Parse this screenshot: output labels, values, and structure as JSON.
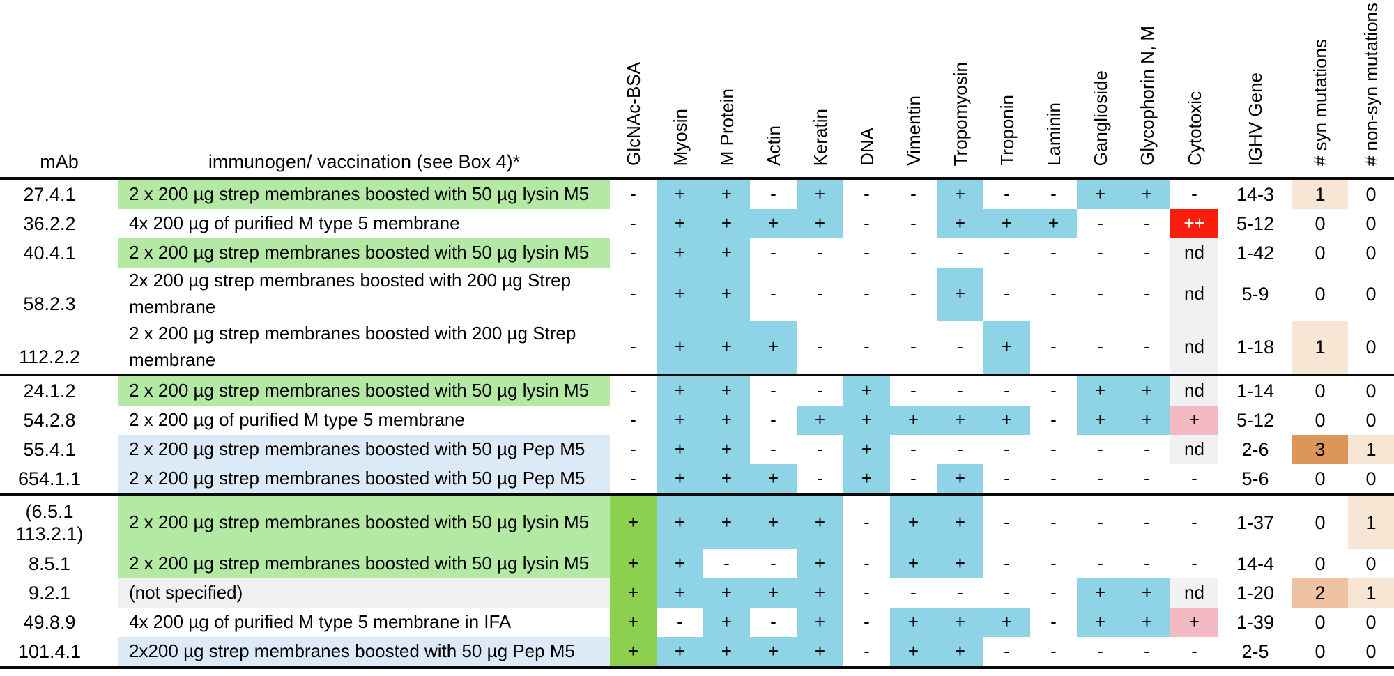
{
  "table": {
    "header": {
      "mab": "mAb",
      "immunogen": "immunogen/ vaccination (see Box 4)*",
      "antigens": [
        "GlcNAc-BSA",
        "Myosin",
        "M Protein",
        "Actin",
        "Keratin",
        "DNA",
        "Vimentin",
        "Tropomyosin",
        "Troponin",
        "Laminin",
        "Ganglioside",
        "Glycophorin N, M",
        "Cytotoxic"
      ],
      "meta": [
        "IGHV Gene",
        "# syn mutations",
        "# non-syn mutations"
      ]
    },
    "colors": {
      "positive": "#8FD3E6",
      "glcnac_positive": "#8DD04F",
      "row_green": "#B4E9A4",
      "row_blue": "#DCE9F6",
      "row_gray": "#F0F0F0",
      "cytotoxic_strong": "#FA1E0E",
      "cytotoxic_weak": "#F4BAC4",
      "not_determined": "#F1F1F1",
      "mutation_1": "#F8E6D4",
      "mutation_2": "#EFC3A2",
      "mutation_3": "#DD9659"
    },
    "groups": [
      {
        "rows": [
          {
            "mab": [
              "27.4.1"
            ],
            "immunogen": "2 x 200 µg strep membranes boosted with 50 µg lysin M5",
            "imm_bg": "green",
            "tall": false,
            "cells": [
              "-",
              "+",
              "+",
              "-",
              "+",
              "-",
              "-",
              "+",
              "-",
              "-",
              "+",
              "+",
              "-"
            ],
            "ighv": "14-3",
            "syn": "1",
            "nonsyn": "0"
          },
          {
            "mab": [
              "36.2.2"
            ],
            "immunogen": "4x 200 µg of purified M type 5 membrane",
            "imm_bg": "white",
            "tall": false,
            "cells": [
              "-",
              "+",
              "+",
              "+",
              "+",
              "-",
              "-",
              "+",
              "+",
              "+",
              "-",
              "-",
              "++"
            ],
            "ighv": "5-12",
            "syn": "0",
            "nonsyn": "0"
          },
          {
            "mab": [
              "40.4.1"
            ],
            "immunogen": "2 x 200 µg strep membranes boosted with 50 µg lysin M5",
            "imm_bg": "green",
            "tall": false,
            "cells": [
              "-",
              "+",
              "+",
              "-",
              "-",
              "-",
              "-",
              "-",
              "-",
              "-",
              "-",
              "-",
              "nd"
            ],
            "ighv": "1-42",
            "syn": "0",
            "nonsyn": "0"
          },
          {
            "mab": [
              "",
              "58.2.3"
            ],
            "immunogen": "2x 200 µg strep membranes boosted with 200 µg Strep\nmembrane",
            "imm_bg": "white",
            "tall": true,
            "cells": [
              "-",
              "+",
              "+",
              "-",
              "-",
              "-",
              "-",
              "+",
              "-",
              "-",
              "-",
              "-",
              "nd"
            ],
            "ighv": "5-9",
            "syn": "0",
            "nonsyn": "0"
          },
          {
            "mab": [
              "",
              "112.2.2"
            ],
            "immunogen": "2 x 200 µg strep membranes boosted with 200 µg Strep\nmembrane",
            "imm_bg": "white",
            "tall": true,
            "cells": [
              "-",
              "+",
              "+",
              "+",
              "-",
              "-",
              "-",
              "-",
              "+",
              "-",
              "-",
              "-",
              "nd"
            ],
            "ighv": "1-18",
            "syn": "1",
            "nonsyn": "0"
          }
        ]
      },
      {
        "rows": [
          {
            "mab": [
              "24.1.2"
            ],
            "immunogen": "2 x 200 µg strep membranes boosted with 50 µg lysin M5",
            "imm_bg": "green",
            "tall": false,
            "cells": [
              "-",
              "+",
              "+",
              "-",
              "-",
              "+",
              "-",
              "-",
              "-",
              "-",
              "+",
              "+",
              "nd"
            ],
            "ighv": "1-14",
            "syn": "0",
            "nonsyn": "0"
          },
          {
            "mab": [
              "54.2.8"
            ],
            "immunogen": "2 x 200 µg of purified M type 5 membrane",
            "imm_bg": "white",
            "tall": false,
            "cells": [
              "-",
              "+",
              "+",
              "-",
              "+",
              "+",
              "+",
              "+",
              "+",
              "-",
              "+",
              "+",
              "+"
            ],
            "ighv": "5-12",
            "syn": "0",
            "nonsyn": "0"
          },
          {
            "mab": [
              "55.4.1"
            ],
            "immunogen": "2 x 200 µg strep membranes boosted with 50 µg Pep M5",
            "imm_bg": "blue",
            "tall": false,
            "cells": [
              "-",
              "+",
              "+",
              "-",
              "-",
              "+",
              "-",
              "-",
              "-",
              "-",
              "-",
              "-",
              "nd"
            ],
            "ighv": "2-6",
            "syn": "3",
            "nonsyn": "1"
          },
          {
            "mab": [
              "654.1.1"
            ],
            "immunogen": "2 x 200 µg strep membranes boosted with 50 µg Pep M5",
            "imm_bg": "blue",
            "tall": false,
            "cells": [
              "-",
              "+",
              "+",
              "+",
              "-",
              "+",
              "-",
              "+",
              "-",
              "-",
              "-",
              "-",
              "-"
            ],
            "ighv": "5-6",
            "syn": "0",
            "nonsyn": "0"
          }
        ]
      },
      {
        "rows": [
          {
            "mab": [
              "(6.5.1",
              "113.2.1)"
            ],
            "immunogen": "2 x 200 µg strep membranes boosted with 50 µg lysin M5",
            "imm_bg": "green",
            "tall": true,
            "cells": [
              "+",
              "+",
              "+",
              "+",
              "+",
              "-",
              "+",
              "+",
              "-",
              "-",
              "-",
              "-",
              "-"
            ],
            "ighv": "1-37",
            "syn": "0",
            "nonsyn": "1"
          },
          {
            "mab": [
              "8.5.1"
            ],
            "immunogen": "2 x 200 µg strep membranes boosted with 50 µg lysin M5",
            "imm_bg": "green",
            "tall": false,
            "cells": [
              "+",
              "+",
              "-",
              "-",
              "+",
              "-",
              "+",
              "+",
              "-",
              "-",
              "-",
              "-",
              "-"
            ],
            "ighv": "14-4",
            "syn": "0",
            "nonsyn": "0"
          },
          {
            "mab": [
              "9.2.1"
            ],
            "immunogen": "(not specified)",
            "imm_bg": "gray",
            "tall": false,
            "cells": [
              "+",
              "+",
              "+",
              "+",
              "+",
              "-",
              "-",
              "-",
              "-",
              "-",
              "+",
              "+",
              "nd"
            ],
            "ighv": "1-20",
            "syn": "2",
            "nonsyn": "1"
          },
          {
            "mab": [
              "49.8.9"
            ],
            "immunogen": "4x 200 µg of purified M type 5 membrane in IFA",
            "imm_bg": "white",
            "tall": false,
            "cells": [
              "+",
              "-",
              "+",
              "-",
              "+",
              "-",
              "+",
              "+",
              "+",
              "-",
              "+",
              "+",
              "+"
            ],
            "ighv": "1-39",
            "syn": "0",
            "nonsyn": "0"
          },
          {
            "mab": [
              "101.4.1"
            ],
            "immunogen": "2x200 µg strep membranes boosted with 50 µg Pep M5",
            "imm_bg": "blue",
            "tall": false,
            "cells": [
              "+",
              "+",
              "+",
              "+",
              "+",
              "-",
              "+",
              "+",
              "-",
              "-",
              "-",
              "-",
              "-"
            ],
            "ighv": "2-5",
            "syn": "0",
            "nonsyn": "0"
          }
        ]
      }
    ]
  }
}
